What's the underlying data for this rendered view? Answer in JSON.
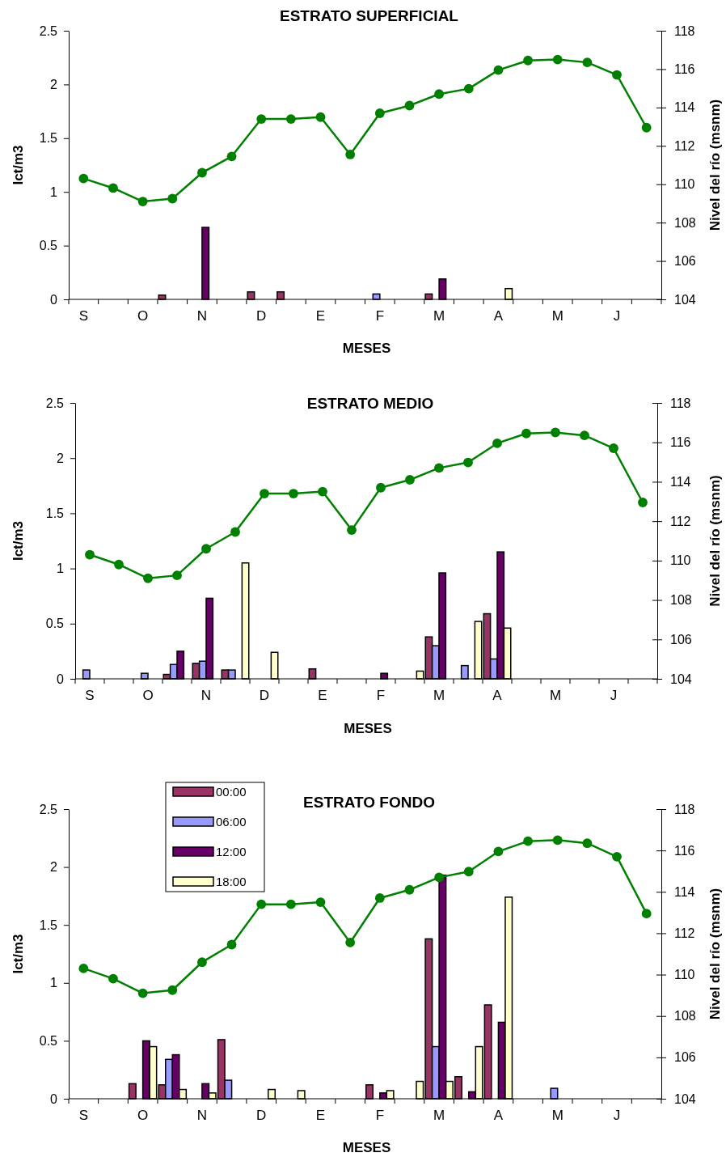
{
  "chart_data": [
    {
      "type": "bar",
      "title": "ESTRATO SUPERFICIAL",
      "xlabel": "MESES",
      "ylabel": "Ict/m3",
      "y2label": "Nivel del río (msnm)",
      "categories": [
        "S",
        null,
        "O",
        null,
        "N",
        null,
        "D",
        null,
        "E",
        null,
        "F",
        null,
        "M",
        null,
        "A",
        null,
        "M",
        null,
        "J",
        null
      ],
      "ylim": [
        0,
        2.5
      ],
      "yticks": [
        0,
        0.5,
        1,
        1.5,
        2,
        2.5
      ],
      "y2lim": [
        104,
        118
      ],
      "y2ticks": [
        104,
        106,
        108,
        110,
        112,
        114,
        116,
        118
      ],
      "legend": false,
      "series": [
        {
          "color": "#993366",
          "values": [
            null,
            null,
            null,
            0.04,
            null,
            null,
            0.07,
            0.07,
            null,
            null,
            null,
            null,
            0.05,
            null,
            null,
            null,
            null,
            null,
            null,
            null
          ]
        },
        {
          "color": "#9999ff",
          "values": [
            null,
            null,
            null,
            null,
            null,
            null,
            null,
            null,
            null,
            null,
            0.05,
            null,
            null,
            null,
            null,
            null,
            null,
            null,
            null,
            null
          ]
        },
        {
          "color": "#660066",
          "values": [
            null,
            null,
            null,
            null,
            0.67,
            null,
            null,
            null,
            null,
            null,
            null,
            null,
            0.19,
            null,
            null,
            null,
            null,
            null,
            null,
            null
          ]
        },
        {
          "color": "#ffffcc",
          "values": [
            null,
            null,
            null,
            null,
            null,
            null,
            null,
            null,
            null,
            null,
            null,
            null,
            null,
            null,
            0.1,
            null,
            null,
            null,
            null,
            null
          ]
        },
        {
          "type": "line",
          "axis": "y2",
          "color": "#008000",
          "marker": "circle",
          "values": [
            110.3,
            109.8,
            109.1,
            109.25,
            110.6,
            111.45,
            113.4,
            113.4,
            113.5,
            111.55,
            113.7,
            114.1,
            114.7,
            114.98,
            115.95,
            116.45,
            116.5,
            116.35,
            115.7,
            112.95
          ]
        }
      ]
    },
    {
      "type": "bar",
      "title": "ESTRATO MEDIO",
      "xlabel": "MESES",
      "ylabel": "Ict/m3",
      "y2label": "Nivel del río (msnm)",
      "categories": [
        "S",
        null,
        "O",
        null,
        "N",
        null,
        "D",
        null,
        "E",
        null,
        "F",
        null,
        "M",
        null,
        "A",
        null,
        "M",
        null,
        "J",
        null
      ],
      "ylim": [
        0,
        2.5
      ],
      "yticks": [
        0,
        0.5,
        1,
        1.5,
        2,
        2.5
      ],
      "y2lim": [
        104,
        118
      ],
      "y2ticks": [
        104,
        106,
        108,
        110,
        112,
        114,
        116,
        118
      ],
      "legend": false,
      "series": [
        {
          "color": "#993366",
          "values": [
            null,
            null,
            null,
            0.04,
            0.14,
            0.08,
            null,
            null,
            0.09,
            null,
            null,
            null,
            0.38,
            null,
            0.59,
            null,
            null,
            null,
            null,
            null
          ]
        },
        {
          "color": "#9999ff",
          "values": [
            0.08,
            null,
            0.05,
            0.13,
            0.16,
            0.08,
            null,
            null,
            null,
            null,
            null,
            null,
            0.3,
            0.12,
            0.18,
            null,
            null,
            null,
            null,
            null
          ]
        },
        {
          "color": "#660066",
          "values": [
            null,
            null,
            null,
            0.25,
            0.73,
            null,
            null,
            null,
            null,
            null,
            0.05,
            null,
            0.96,
            null,
            1.15,
            null,
            null,
            null,
            null,
            null
          ]
        },
        {
          "color": "#ffffcc",
          "values": [
            null,
            null,
            null,
            null,
            null,
            1.05,
            0.24,
            null,
            null,
            null,
            null,
            0.07,
            null,
            0.52,
            0.46,
            null,
            null,
            null,
            null,
            null
          ]
        },
        {
          "type": "line",
          "axis": "y2",
          "color": "#008000",
          "marker": "circle",
          "values": [
            110.3,
            109.8,
            109.1,
            109.25,
            110.6,
            111.45,
            113.4,
            113.4,
            113.5,
            111.55,
            113.7,
            114.1,
            114.7,
            114.98,
            115.95,
            116.45,
            116.5,
            116.35,
            115.7,
            112.95
          ]
        }
      ]
    },
    {
      "type": "bar",
      "title": "ESTRATO FONDO",
      "xlabel": "MESES",
      "ylabel": "Ict/m3",
      "y2label": "Nivel del río (msnm)",
      "categories": [
        "S",
        null,
        "O",
        null,
        "N",
        null,
        "D",
        null,
        "E",
        null,
        "F",
        null,
        "M",
        null,
        "A",
        null,
        "M",
        null,
        "J",
        null
      ],
      "ylim": [
        0,
        2.5
      ],
      "yticks": [
        0,
        0.5,
        1,
        1.5,
        2,
        2.5
      ],
      "y2lim": [
        104,
        118
      ],
      "y2ticks": [
        104,
        106,
        108,
        110,
        112,
        114,
        116,
        118
      ],
      "legend": "top left",
      "series": [
        {
          "name": "00:00",
          "color": "#993366",
          "values": [
            null,
            null,
            0.13,
            0.12,
            null,
            0.51,
            null,
            null,
            null,
            null,
            0.12,
            null,
            1.38,
            0.19,
            0.81,
            null,
            null,
            null,
            null,
            null
          ]
        },
        {
          "name": "06:00",
          "color": "#9999ff",
          "values": [
            null,
            null,
            null,
            0.34,
            null,
            0.16,
            null,
            null,
            null,
            null,
            null,
            null,
            0.45,
            null,
            null,
            null,
            0.09,
            null,
            null,
            null
          ]
        },
        {
          "name": "12:00",
          "color": "#660066",
          "values": [
            null,
            null,
            0.5,
            0.38,
            0.13,
            null,
            null,
            null,
            null,
            null,
            0.05,
            null,
            1.93,
            0.06,
            0.66,
            null,
            null,
            null,
            null,
            null
          ]
        },
        {
          "name": "18:00",
          "color": "#ffffcc",
          "values": [
            null,
            null,
            0.45,
            0.08,
            0.05,
            null,
            0.08,
            0.07,
            null,
            null,
            0.07,
            0.15,
            0.15,
            0.45,
            1.74,
            null,
            null,
            null,
            null,
            null
          ]
        },
        {
          "type": "line",
          "axis": "y2",
          "color": "#008000",
          "marker": "circle",
          "values": [
            110.3,
            109.8,
            109.1,
            109.25,
            110.6,
            111.45,
            113.4,
            113.4,
            113.5,
            111.55,
            113.7,
            114.1,
            114.7,
            114.98,
            115.95,
            116.45,
            116.5,
            116.35,
            115.7,
            112.95
          ]
        }
      ]
    }
  ]
}
